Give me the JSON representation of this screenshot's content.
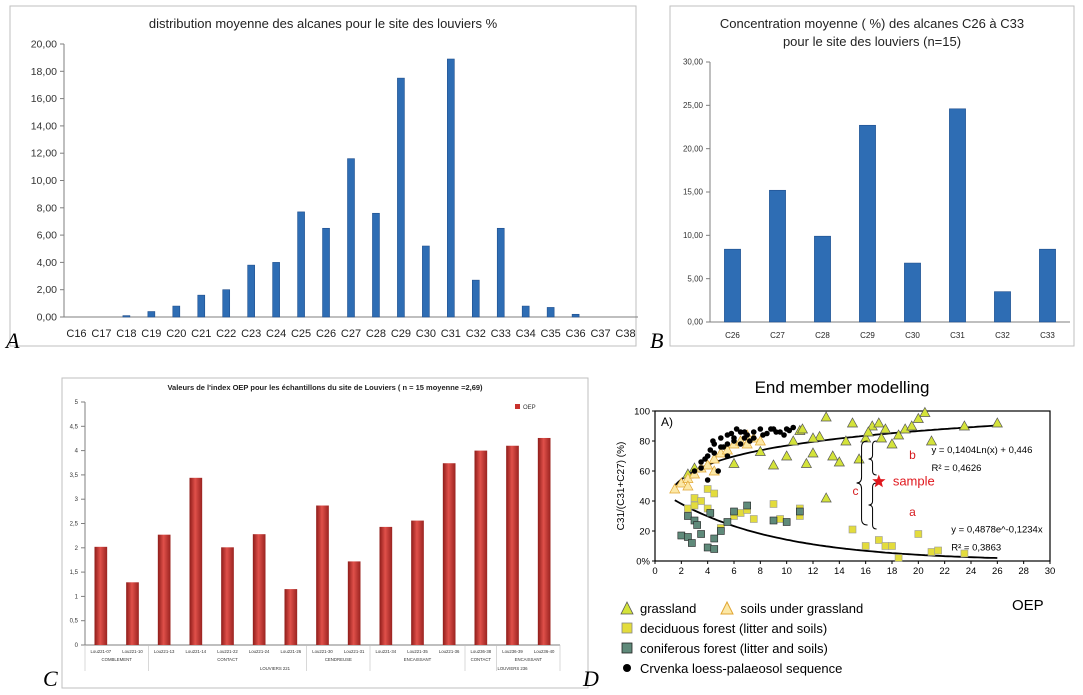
{
  "chart_data": [
    {
      "panel": "A",
      "type": "bar",
      "title": "distribution moyenne des alcanes pour le site des louviers %",
      "categories": [
        "C16",
        "C17",
        "C18",
        "C19",
        "C20",
        "C21",
        "C22",
        "C23",
        "C24",
        "C25",
        "C26",
        "C27",
        "C28",
        "C29",
        "C30",
        "C31",
        "C32",
        "C33",
        "C34",
        "C35",
        "C36",
        "C37",
        "C38"
      ],
      "values": [
        0,
        0,
        0.1,
        0.4,
        0.8,
        1.6,
        2.0,
        3.8,
        4.0,
        7.7,
        6.5,
        11.6,
        7.6,
        17.5,
        5.2,
        18.9,
        2.7,
        6.5,
        0.8,
        0.7,
        0.2,
        0,
        0
      ],
      "ylim": [
        0,
        20
      ],
      "yticks": [
        "0,00",
        "2,00",
        "4,00",
        "6,00",
        "8,00",
        "10,00",
        "12,00",
        "14,00",
        "16,00",
        "18,00",
        "20,00"
      ],
      "grid": false,
      "color": "#2e6db4"
    },
    {
      "panel": "B",
      "type": "bar",
      "title": [
        "Concentration moyenne ( %) des alcanes C26 à C33",
        "pour le site des louviers (n=15)"
      ],
      "categories": [
        "C26",
        "C27",
        "C28",
        "C29",
        "C30",
        "C31",
        "C32",
        "C33"
      ],
      "values": [
        8.4,
        15.2,
        9.9,
        22.7,
        6.8,
        24.6,
        3.5,
        8.4
      ],
      "ylim": [
        0,
        30
      ],
      "yticks": [
        "0,00",
        "5,00",
        "10,00",
        "15,00",
        "20,00",
        "25,00",
        "30,00"
      ],
      "grid": false,
      "color": "#2e6db4"
    },
    {
      "panel": "C",
      "type": "bar",
      "title": "Valeurs de l'index OEP pour les échantillons du site de Louviers ( n = 15 moyenne =2,69)",
      "categories": [
        "Lou221-07",
        "Lou221-10",
        "Lou221-13",
        "Lou221-14",
        "Lou221-22",
        "Lou221-24",
        "Lou221-26",
        "Lou221-30",
        "Lou221-31",
        "Lou221-34",
        "Lou221-35",
        "Lou221-36",
        "Lou236-38",
        "Lou236-39",
        "Lou236-40"
      ],
      "values": [
        2.02,
        1.29,
        2.27,
        3.44,
        2.01,
        2.28,
        1.15,
        2.87,
        1.72,
        2.43,
        2.56,
        3.74,
        4.0,
        4.1,
        4.26
      ],
      "ylim": [
        0,
        5
      ],
      "yticks": [
        "0",
        "0,5",
        "1",
        "1,5",
        "2",
        "2,5",
        "3",
        "3,5",
        "4",
        "4,5",
        "5"
      ],
      "legend": "OEP",
      "groups": [
        {
          "label": "COMBLEMENT",
          "start": 0,
          "end": 1
        },
        {
          "label": "CONTACT",
          "start": 2,
          "end": 6
        },
        {
          "label": "CENDREUSE",
          "start": 7,
          "end": 8
        },
        {
          "label": "ENCAISSANT",
          "start": 9,
          "end": 11
        },
        {
          "label": "CONTACT",
          "start": 12,
          "end": 12
        },
        {
          "label": "ENCAISSANT",
          "start": 13,
          "end": 14
        }
      ],
      "supergroups": [
        {
          "label": "LOUVIERS 221",
          "start": 0,
          "end": 11
        },
        {
          "label": "LOUVIERS 236",
          "start": 12,
          "end": 14
        }
      ],
      "color": "#c8322d"
    },
    {
      "panel": "D",
      "type": "scatter",
      "title": "End member modelling",
      "xlabel": "OEP",
      "ylabel": "C31/(C31+C27) (%)",
      "xlim": [
        0,
        30
      ],
      "ylim": [
        0,
        100
      ],
      "xticks": [
        0,
        2,
        4,
        6,
        8,
        10,
        12,
        14,
        16,
        18,
        20,
        22,
        24,
        26,
        28,
        30
      ],
      "yticks": [
        "0%",
        "20",
        "40",
        "60",
        "80",
        "100"
      ],
      "tag": "A)",
      "series": [
        {
          "name": "grassland",
          "marker": "triangle",
          "color": "#d4e33a",
          "points": [
            [
              2.5,
              58
            ],
            [
              3,
              62
            ],
            [
              6,
              65
            ],
            [
              8,
              73
            ],
            [
              9,
              64
            ],
            [
              10,
              70
            ],
            [
              10.5,
              80
            ],
            [
              11,
              87
            ],
            [
              11.5,
              65
            ],
            [
              12,
              72
            ],
            [
              12.5,
              83
            ],
            [
              13,
              96
            ],
            [
              13.5,
              70
            ],
            [
              14,
              66
            ],
            [
              14.5,
              80
            ],
            [
              15,
              92
            ],
            [
              15.5,
              68
            ],
            [
              16,
              82
            ],
            [
              16.5,
              90
            ],
            [
              17,
              92
            ],
            [
              17.5,
              88
            ],
            [
              18,
              78
            ],
            [
              18.5,
              84
            ],
            [
              19,
              88
            ],
            [
              19.5,
              90
            ],
            [
              20,
              95
            ],
            [
              20.5,
              99
            ],
            [
              21,
              80
            ],
            [
              23.5,
              90
            ],
            [
              26,
              92
            ],
            [
              13,
              42
            ],
            [
              12,
              82
            ],
            [
              16.2,
              86
            ],
            [
              11.2,
              88
            ],
            [
              17.2,
              82
            ]
          ]
        },
        {
          "name": "soils under grassland",
          "marker": "triangle",
          "color": "#fce8a6",
          "points": [
            [
              1.5,
              48
            ],
            [
              2,
              52
            ],
            [
              2.5,
              55
            ],
            [
              3,
              58
            ],
            [
              3.5,
              62
            ],
            [
              4,
              64
            ],
            [
              4.5,
              68
            ],
            [
              5,
              72
            ],
            [
              6,
              78
            ],
            [
              6.5,
              80
            ],
            [
              7,
              78
            ],
            [
              7.5,
              82
            ],
            [
              8,
              80
            ],
            [
              2.5,
              50
            ],
            [
              4.5,
              60
            ],
            [
              5.5,
              74
            ],
            [
              7,
              84
            ]
          ]
        },
        {
          "name": "deciduous forest (litter and soils)",
          "marker": "square",
          "color": "#e3dc3c",
          "points": [
            [
              2.5,
              35
            ],
            [
              3,
              42
            ],
            [
              3.5,
              40
            ],
            [
              4,
              48
            ],
            [
              4.5,
              45
            ],
            [
              4,
              35
            ],
            [
              5,
              22
            ],
            [
              6,
              30
            ],
            [
              6.5,
              32
            ],
            [
              7.5,
              28
            ],
            [
              9,
              38
            ],
            [
              9.5,
              28
            ],
            [
              11,
              30
            ],
            [
              15,
              21
            ],
            [
              16,
              10
            ],
            [
              17,
              14
            ],
            [
              17.5,
              10
            ],
            [
              18,
              10
            ],
            [
              20,
              18
            ],
            [
              21,
              6
            ],
            [
              21.5,
              7
            ],
            [
              23.5,
              5
            ],
            [
              3,
              37
            ],
            [
              7,
              34
            ],
            [
              11,
              35
            ],
            [
              18.5,
              2
            ]
          ]
        },
        {
          "name": "coniferous forest (litter and soils)",
          "marker": "square",
          "color": "#5f8a7a",
          "points": [
            [
              2,
              17
            ],
            [
              2.5,
              16
            ],
            [
              2.5,
              30
            ],
            [
              3,
              27
            ],
            [
              3.2,
              24
            ],
            [
              3.5,
              18
            ],
            [
              4,
              9
            ],
            [
              4.5,
              8
            ],
            [
              4.5,
              15
            ],
            [
              5,
              20
            ],
            [
              5.5,
              26
            ],
            [
              6,
              33
            ],
            [
              7,
              37
            ],
            [
              9,
              27
            ],
            [
              10,
              26
            ],
            [
              11,
              33
            ],
            [
              2.8,
              12
            ],
            [
              4.2,
              32
            ]
          ]
        },
        {
          "name": "Crvenka loess-palaeosol sequence",
          "marker": "circle",
          "color": "#000000",
          "points": [
            [
              3,
              60
            ],
            [
              3.5,
              62
            ],
            [
              4,
              70
            ],
            [
              4.2,
              74
            ],
            [
              4.5,
              78
            ],
            [
              5,
              76
            ],
            [
              5,
              82
            ],
            [
              5.5,
              84
            ],
            [
              6,
              82
            ],
            [
              6.5,
              86
            ],
            [
              7,
              84
            ],
            [
              7.5,
              86
            ],
            [
              8,
              88
            ],
            [
              8.5,
              85
            ],
            [
              9,
              88
            ],
            [
              9.5,
              86
            ],
            [
              10,
              88
            ],
            [
              10.5,
              89
            ],
            [
              3.5,
              66
            ],
            [
              4.5,
              72
            ],
            [
              5.5,
              78
            ],
            [
              6,
              80
            ],
            [
              6.8,
              82
            ],
            [
              7.2,
              80
            ],
            [
              8.2,
              84
            ],
            [
              9.2,
              86
            ],
            [
              10.2,
              87
            ],
            [
              4,
              54
            ],
            [
              4.8,
              60
            ],
            [
              5.2,
              76
            ],
            [
              5.8,
              85
            ],
            [
              6.2,
              88
            ],
            [
              6.5,
              78
            ],
            [
              7.5,
              82
            ],
            [
              8.8,
              88
            ],
            [
              9.8,
              84
            ],
            [
              3.8,
              68
            ],
            [
              4.4,
              80
            ],
            [
              5.5,
              70
            ],
            [
              6.8,
              86
            ]
          ]
        }
      ],
      "sample": {
        "x": 17,
        "y": 53,
        "label": "sample",
        "color": "#e0181e"
      },
      "fits": [
        {
          "equation": "y = 0,1404Ln(x) + 0,446",
          "r2": "R² = 0,4626"
        },
        {
          "equation": "y = 0,4878e^-0,1234x",
          "r2": "R² = 0,3863"
        }
      ],
      "annotations": {
        "a": "a",
        "b": "b",
        "c": "c"
      }
    }
  ],
  "panel_labels": {
    "A": "A",
    "B": "B",
    "C": "C",
    "D": "D"
  }
}
